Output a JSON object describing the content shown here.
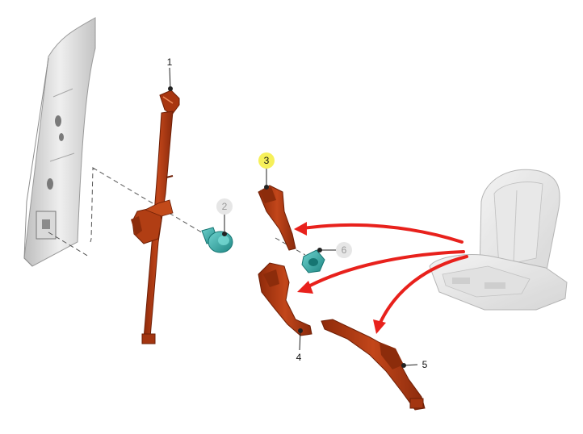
{
  "diagram": {
    "callouts": [
      {
        "id": "1",
        "label": "1",
        "style": "plain"
      },
      {
        "id": "2",
        "label": "2",
        "style": "dimmed"
      },
      {
        "id": "3",
        "label": "3",
        "style": "highlighted"
      },
      {
        "id": "4",
        "label": "4",
        "style": "plain"
      },
      {
        "id": "5",
        "label": "5",
        "style": "plain"
      },
      {
        "id": "6",
        "label": "6",
        "style": "dimmed"
      }
    ],
    "colors": {
      "belt_parts": "#b03a12",
      "belt_parts_dark": "#7c2308",
      "fasteners": "#2aa39f",
      "arrows": "#e8211c",
      "ghost_parts": "#cfcfcf",
      "highlight": "#f6f05a"
    }
  }
}
